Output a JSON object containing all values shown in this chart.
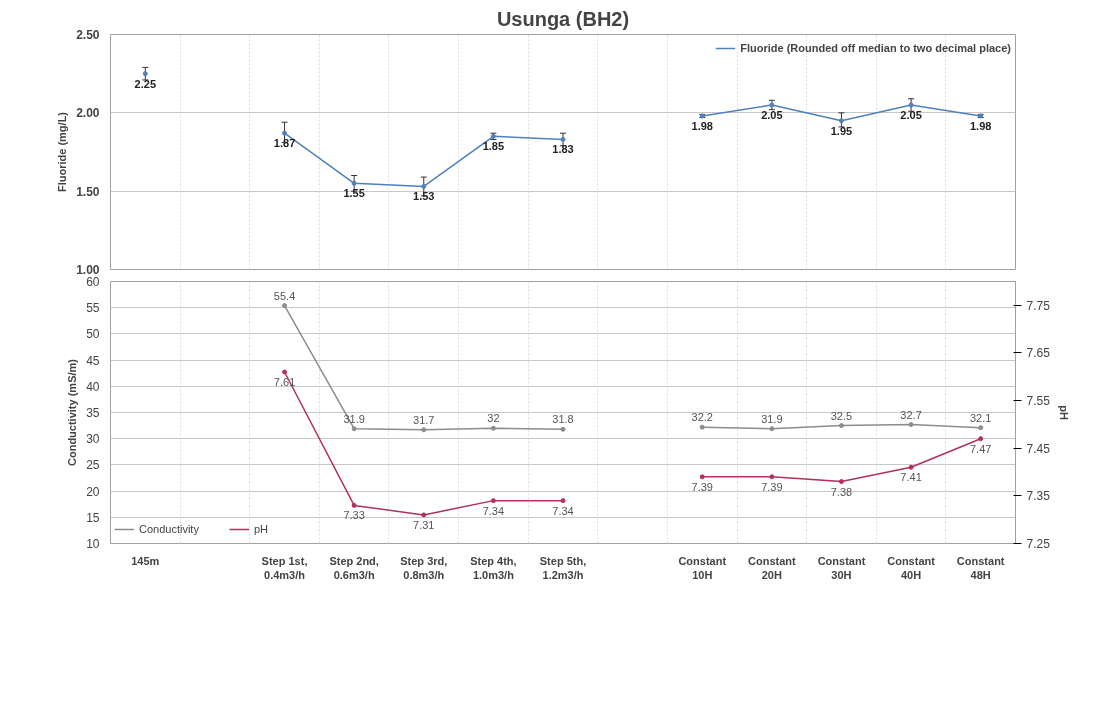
{
  "chart_data": [
    {
      "type": "line",
      "title": "Usunga (BH2)",
      "ylabel": "Fluoride (mg/L)",
      "categories": [
        "145m",
        null,
        "Step 1st, 0.4m3/h",
        "Step 2nd, 0.6m3/h",
        "Step 3rd, 0.8m3/h",
        "Step 4th, 1.0m3/h",
        "Step 5th, 1.2m3/h",
        null,
        "Constant 10H",
        "Constant 20H",
        "Constant 30H",
        "Constant 40H",
        "Constant 48H"
      ],
      "series": [
        {
          "name": "Fluoride (Rounded off median to two decimal place)",
          "color": "#4f81bd",
          "values": [
            2.25,
            null,
            1.87,
            1.55,
            1.53,
            1.85,
            1.83,
            null,
            1.98,
            2.05,
            1.95,
            2.05,
            1.98
          ],
          "errors": [
            0.04,
            null,
            [
              1.81,
              1.94
            ],
            0.05,
            [
              1.47,
              1.59
            ],
            0.02,
            0.04,
            null,
            0.01,
            0.03,
            [
              1.91,
              2.0
            ],
            0.04,
            0.01
          ]
        }
      ],
      "ylim": [
        1.0,
        2.5
      ],
      "yticks": [
        {
          "value": 1.0,
          "label": "1.00"
        },
        {
          "value": 1.5,
          "label": "1.50"
        },
        {
          "value": 2.0,
          "label": "2.00"
        },
        {
          "value": 2.5,
          "label": "2.50"
        }
      ],
      "data_labels": true,
      "grid": true,
      "legend": "top right",
      "tick_labels": "y",
      "marker": "circle"
    },
    {
      "type": "line",
      "ylabel": "Conductivity (mS/m)",
      "y2label": "pH",
      "categories": [
        "145m",
        null,
        "Step 1st, 0.4m3/h",
        "Step 2nd, 0.6m3/h",
        "Step 3rd, 0.8m3/h",
        "Step 4th, 1.0m3/h",
        "Step 5th, 1.2m3/h",
        null,
        "Constant 10H",
        "Constant 20H",
        "Constant 30H",
        "Constant 40H",
        "Constant 48H"
      ],
      "series": [
        {
          "name": "Conductivity",
          "color": "#8c8c8c",
          "values": [
            null,
            null,
            55.4,
            31.9,
            31.7,
            32,
            31.8,
            null,
            32.2,
            31.9,
            32.5,
            32.7,
            32.1
          ]
        },
        {
          "name": "pH",
          "color": "#b03060",
          "axis": "y2",
          "values": [
            null,
            null,
            7.61,
            7.33,
            7.31,
            7.34,
            7.34,
            null,
            7.39,
            7.39,
            7.38,
            7.41,
            7.47
          ]
        }
      ],
      "ylim": [
        10,
        60
      ],
      "yticks": [
        10,
        15,
        20,
        25,
        30,
        35,
        40,
        45,
        50,
        55,
        60
      ],
      "y2lim": [
        7.25,
        7.8
      ],
      "y2ticks": [
        7.25,
        7.35,
        7.45,
        7.55,
        7.65,
        7.75
      ],
      "data_labels": true,
      "grid": true,
      "legend": "bottom",
      "marker": "circle"
    }
  ]
}
